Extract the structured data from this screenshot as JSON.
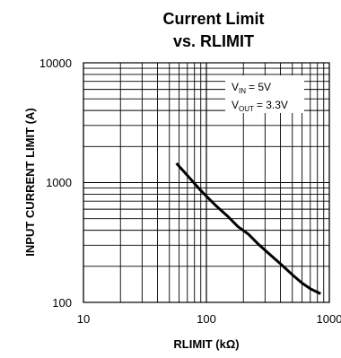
{
  "chart_data": {
    "type": "line",
    "title": [
      "Current Limit",
      "vs. RLIMIT"
    ],
    "xlabel": "RLIMIT (kΩ)",
    "ylabel": "INPUT CURRENT LIMIT (A)",
    "xscale": "log",
    "yscale": "log",
    "xlim": [
      10,
      1000
    ],
    "ylim": [
      100,
      10000
    ],
    "grid": true,
    "x_ticks": [
      "10",
      "100",
      "1000"
    ],
    "y_ticks": [
      "10000",
      "1000",
      "100"
    ],
    "annotation": {
      "vin": {
        "main": "V",
        "sub": "IN",
        "value": "= 5V"
      },
      "vout": {
        "main": "V",
        "sub": "OUT",
        "value": "= 3.3V"
      }
    },
    "series": [
      {
        "x": [
          57,
          65,
          75,
          88,
          100,
          120,
          150,
          180,
          220,
          270,
          330,
          400,
          500,
          600,
          700,
          850
        ],
        "y": [
          1450,
          1250,
          1060,
          880,
          770,
          640,
          520,
          430,
          370,
          300,
          250,
          210,
          170,
          145,
          130,
          118
        ]
      }
    ],
    "line_color": "#000000"
  }
}
